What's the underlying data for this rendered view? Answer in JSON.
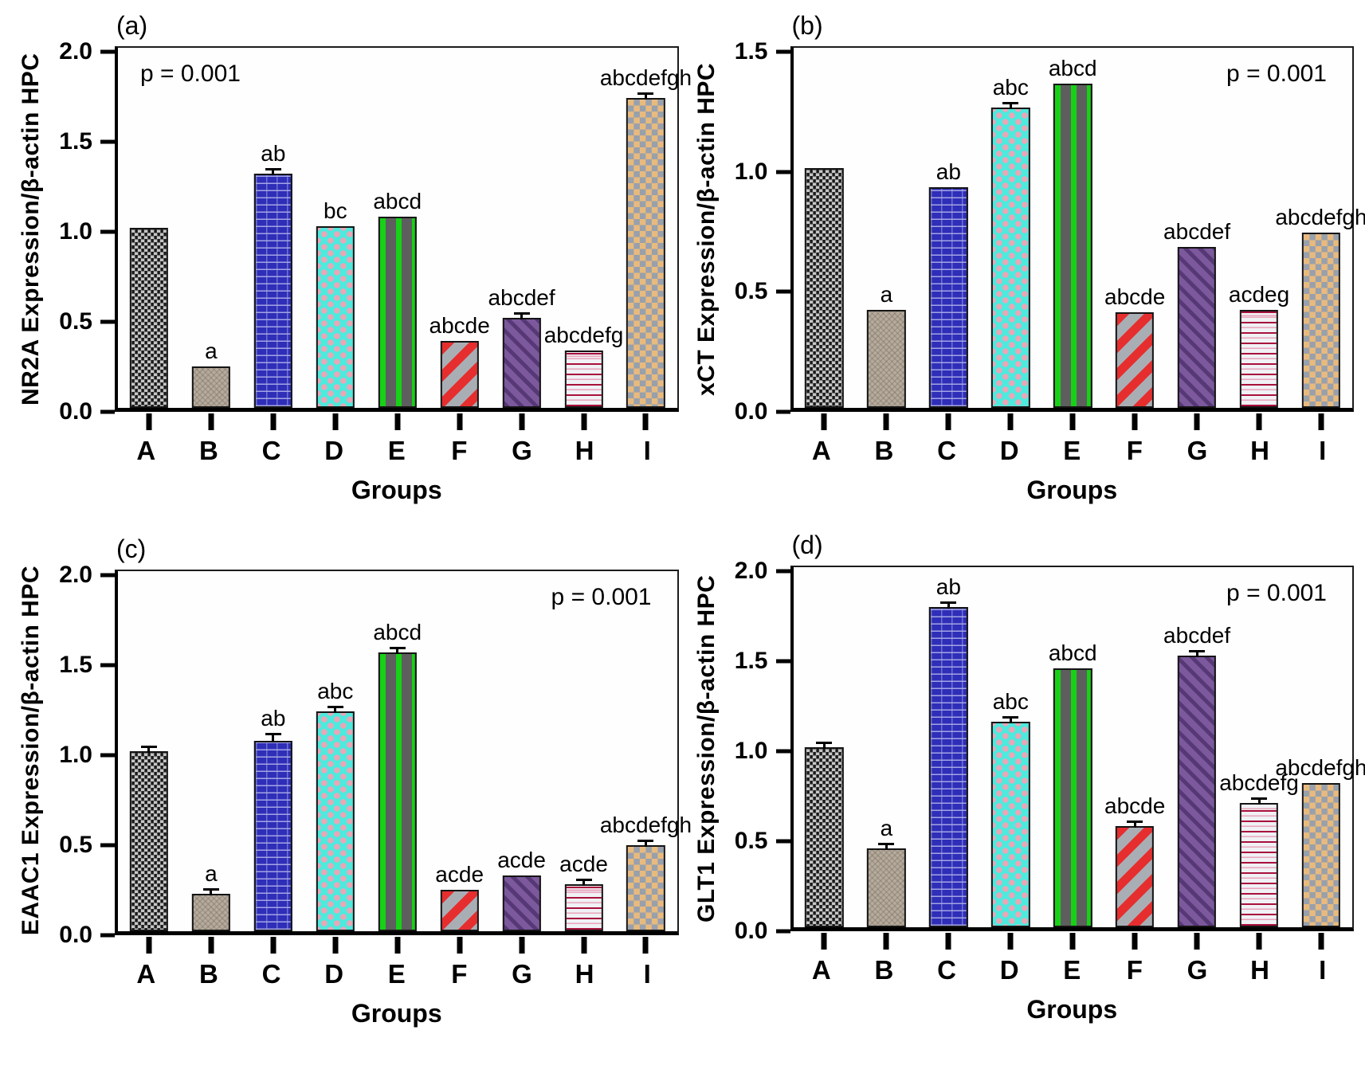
{
  "figure": {
    "description": "Four-panel bar chart figure of gene expression in hippocampus (HPC) normalized to beta-actin",
    "panels_order": [
      "a",
      "b",
      "c",
      "d"
    ],
    "text_color": "#000000",
    "axis_color": "#000000",
    "background_color": "#ffffff"
  },
  "bar_styles": [
    {
      "group": "A",
      "pattern": "gray-black-weave",
      "colors": [
        "#c6c6c6",
        "#1a1a1a"
      ]
    },
    {
      "group": "B",
      "pattern": "tan-wave-texture",
      "colors": [
        "#b5ab9e",
        "#7d705e"
      ]
    },
    {
      "group": "C",
      "pattern": "blue-brick",
      "colors": [
        "#2e2eb8",
        "#9a9ade"
      ]
    },
    {
      "group": "D",
      "pattern": "cyan-pink-dots",
      "colors": [
        "#4deade",
        "#eba6b6"
      ]
    },
    {
      "group": "E",
      "pattern": "gray-green-vertical-stripes",
      "colors": [
        "#5e5e5e",
        "#17d117"
      ]
    },
    {
      "group": "F",
      "pattern": "gray-red-diagonal-stripes",
      "colors": [
        "#a9aeb5",
        "#e62e2e"
      ]
    },
    {
      "group": "G",
      "pattern": "purple-dark-diagonal",
      "colors": [
        "#7c589c",
        "#322050"
      ]
    },
    {
      "group": "H",
      "pattern": "white-crimson-horizontal-lines",
      "colors": [
        "#f0f1f5",
        "#a8103c"
      ]
    },
    {
      "group": "I",
      "pattern": "orange-gray-checkerboard",
      "colors": [
        "#e8ba7e",
        "#98a0ac"
      ]
    }
  ],
  "chart_data": [
    {
      "type": "bar",
      "panel": "a",
      "panel_label": "(a)",
      "ylabel": "NR2A Expression/β-actin HPC",
      "xlabel": "Groups",
      "p_annotation": "p = 0.001",
      "p_position": "top-left",
      "ylim": [
        0,
        2.0
      ],
      "yticks": [
        "0.0",
        "0.5",
        "1.0",
        "1.5",
        "2.0"
      ],
      "grid": false,
      "legend": false,
      "categories": [
        "A",
        "B",
        "C",
        "D",
        "E",
        "F",
        "G",
        "H",
        "I"
      ],
      "values": [
        1.0,
        0.23,
        1.3,
        1.01,
        1.06,
        0.37,
        0.5,
        0.32,
        1.72
      ],
      "errors": [
        0,
        0,
        0.015,
        0,
        0,
        0,
        0.025,
        0,
        0.02
      ],
      "sig_labels": [
        "",
        "a",
        "ab",
        "bc",
        "abcd",
        "abcde",
        "abcdef",
        "abcdefg",
        "abcdefgh"
      ]
    },
    {
      "type": "bar",
      "panel": "b",
      "panel_label": "(b)",
      "ylabel": "xCT Expression/β-actin HPC",
      "xlabel": "Groups",
      "p_annotation": "p = 0.001",
      "p_position": "top-right",
      "ylim": [
        0,
        1.5
      ],
      "yticks": [
        "0.0",
        "0.5",
        "1.0",
        "1.5"
      ],
      "grid": false,
      "legend": false,
      "categories": [
        "A",
        "B",
        "C",
        "D",
        "E",
        "F",
        "G",
        "H",
        "I"
      ],
      "values": [
        1.0,
        0.41,
        0.92,
        1.25,
        1.35,
        0.4,
        0.67,
        0.41,
        0.73
      ],
      "errors": [
        0,
        0,
        0,
        0.012,
        0,
        0,
        0,
        0,
        0
      ],
      "sig_labels": [
        "",
        "a",
        "ab",
        "abc",
        "abcd",
        "abcde",
        "abcdef",
        "acdeg",
        "abcdefgh"
      ]
    },
    {
      "type": "bar",
      "panel": "c",
      "panel_label": "(c)",
      "ylabel": "EAAC1 Expression/β-actin HPC",
      "xlabel": "Groups",
      "p_annotation": "p = 0.001",
      "p_position": "top-right",
      "ylim": [
        0,
        2.0
      ],
      "yticks": [
        "0.0",
        "0.5",
        "1.0",
        "1.5",
        "2.0"
      ],
      "grid": false,
      "legend": false,
      "categories": [
        "A",
        "B",
        "C",
        "D",
        "E",
        "F",
        "G",
        "H",
        "I"
      ],
      "values": [
        1.0,
        0.21,
        1.06,
        1.22,
        1.55,
        0.23,
        0.31,
        0.26,
        0.48
      ],
      "errors": [
        0.012,
        0.012,
        0.04,
        0.02,
        0.012,
        0,
        0,
        0.025,
        0.025
      ],
      "sig_labels": [
        "",
        "a",
        "ab",
        "abc",
        "abcd",
        "acde",
        "acde",
        "acde",
        "abcdefgh"
      ]
    },
    {
      "type": "bar",
      "panel": "d",
      "panel_label": "(d)",
      "ylabel": "GLT1 Expression/β-actin HPC",
      "xlabel": "Groups",
      "p_annotation": "p = 0.001",
      "p_position": "top-right",
      "ylim": [
        0,
        2.0
      ],
      "yticks": [
        "0.0",
        "0.5",
        "1.0",
        "1.5",
        "2.0"
      ],
      "grid": false,
      "legend": false,
      "categories": [
        "A",
        "B",
        "C",
        "D",
        "E",
        "F",
        "G",
        "H",
        "I"
      ],
      "values": [
        1.0,
        0.44,
        1.78,
        1.14,
        1.44,
        0.56,
        1.51,
        0.69,
        0.8
      ],
      "errors": [
        0.012,
        0.012,
        0.012,
        0.012,
        0,
        0.012,
        0.02,
        0.012,
        0
      ],
      "sig_labels": [
        "",
        "a",
        "ab",
        "abc",
        "abcd",
        "abcde",
        "abcdef",
        "abcdefg",
        "abcdefgh"
      ]
    }
  ]
}
